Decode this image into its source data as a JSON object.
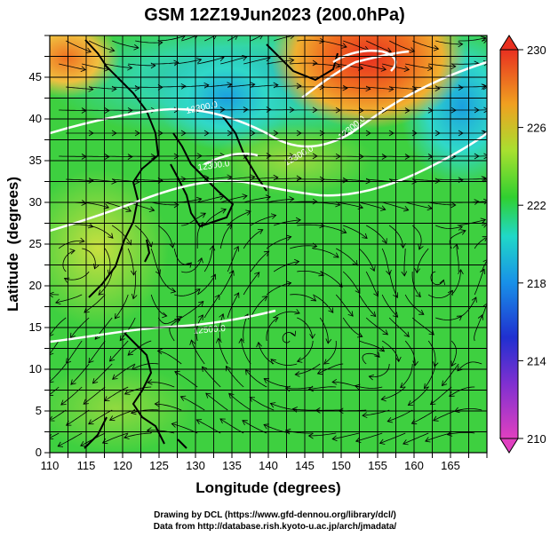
{
  "title": "GSM 12Z19Jun2023 (200.0hPa)",
  "chart_data": {
    "type": "heatmap",
    "xlabel": "Longitude (degrees)",
    "ylabel": "Latitude  (degrees)",
    "xlim": [
      110,
      170
    ],
    "ylim": [
      0,
      50
    ],
    "x_ticks": [
      "110",
      "115",
      "120",
      "125",
      "130",
      "135",
      "140",
      "145",
      "150",
      "155",
      "160",
      "165"
    ],
    "y_ticks": [
      "0",
      "5",
      "10",
      "15",
      "20",
      "25",
      "30",
      "35",
      "40",
      "45"
    ],
    "colorbar": {
      "range": [
        210,
        230
      ],
      "ticks": [
        "210",
        "214",
        "218",
        "222",
        "226",
        "230"
      ],
      "colors": [
        "#e040c0",
        "#3020d0",
        "#1890e8",
        "#20d8c8",
        "#30d030",
        "#a8e030",
        "#f0a020",
        "#e83020"
      ]
    },
    "contour_labels": [
      "12300.0",
      "12300.0",
      "12300.0",
      "12300.0",
      "12500.0"
    ],
    "overlays": [
      "streamlines",
      "coastlines",
      "graticule"
    ]
  },
  "credits": {
    "line1": "Drawing by DCL (https://www.gfd-dennou.org/library/dcl/)",
    "line2": "Data from http://database.rish.kyoto-u.ac.jp/arch/jmadata/"
  }
}
